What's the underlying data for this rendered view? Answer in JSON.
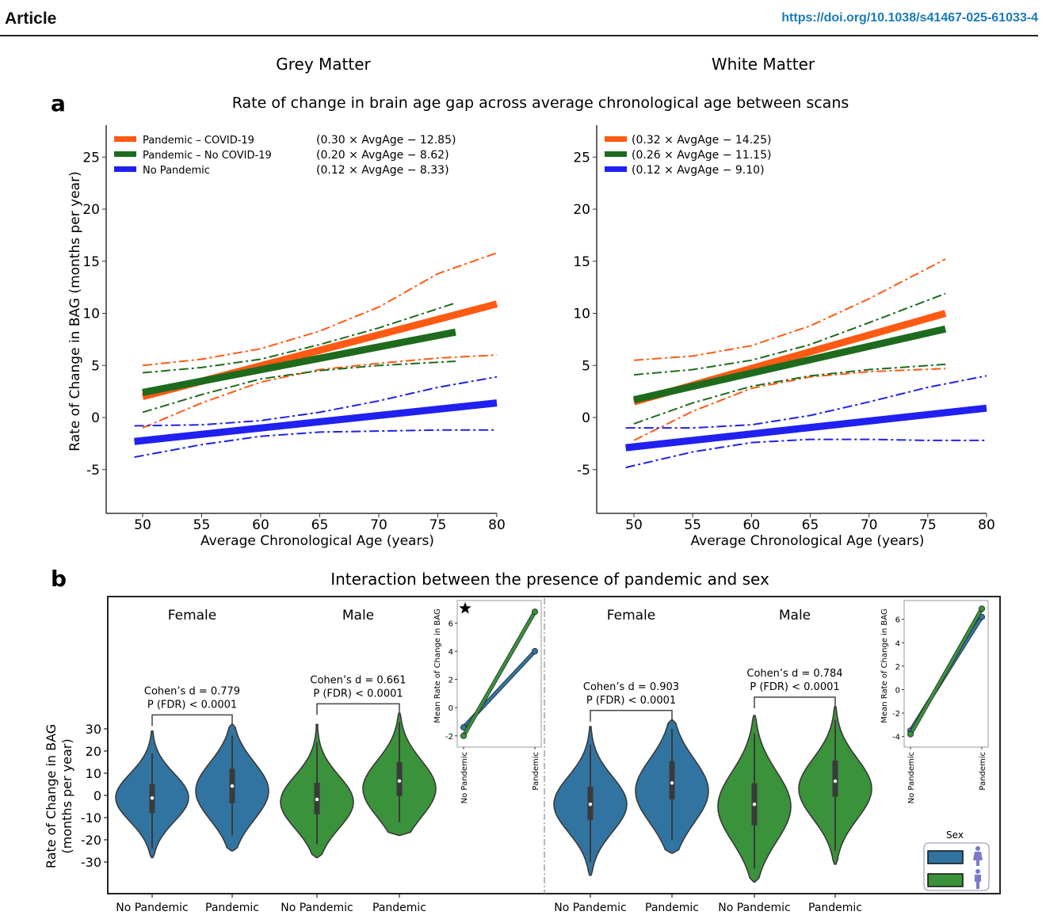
{
  "header": {
    "section": "Article",
    "doi": "https://doi.org/10.1038/s41467-025-61033-4"
  },
  "panel_a": {
    "label": "a",
    "title": "Rate of change in brain age gap across average chronological age between scans",
    "column_titles": [
      "Grey Matter",
      "White Matter"
    ]
  },
  "panel_b": {
    "label": "b",
    "title": "Interaction between the presence of pandemic and sex",
    "legend_title": "Sex",
    "legend_items": [
      {
        "label": "Female",
        "color": "#3274a1",
        "icon": "female-person-icon"
      },
      {
        "label": "Male",
        "color": "#3a923a",
        "icon": "male-person-icon"
      }
    ],
    "star_icon": "star-icon"
  },
  "colors": {
    "covid": "#ff5a14",
    "no_covid": "#1e6b1e",
    "no_pandemic": "#2020f0",
    "female": "#3274a1",
    "male": "#3a923a"
  },
  "chart_data": [
    {
      "id": "grey-matter-line",
      "type": "line",
      "title": "Grey Matter",
      "xlabel": "Average Chronological Age (years)",
      "ylabel": "Rate of Change in BAG (months per year)",
      "xlim": [
        47,
        80
      ],
      "ylim": [
        -9,
        28
      ],
      "xticks": [
        50,
        55,
        60,
        65,
        70,
        75,
        80
      ],
      "yticks": [
        -5,
        0,
        5,
        10,
        15,
        20,
        25
      ],
      "ytick_labels": [
        "-5",
        "0",
        "5",
        "10",
        "15",
        "20",
        "25"
      ],
      "legend_position": "top-left",
      "series": [
        {
          "name": "Pandemic – COVID-19",
          "equation": "(0.30 × AvgAge − 12.85)",
          "color_key": "covid",
          "fit": [
            [
              50,
              2.0
            ],
            [
              80,
              10.9
            ]
          ],
          "ci_upper": [
            [
              50,
              5.0
            ],
            [
              55,
              5.6
            ],
            [
              60,
              6.6
            ],
            [
              65,
              8.3
            ],
            [
              70,
              10.6
            ],
            [
              75,
              13.8
            ],
            [
              80,
              15.8
            ]
          ],
          "ci_lower": [
            [
              50,
              -1.0
            ],
            [
              55,
              1.4
            ],
            [
              60,
              3.4
            ],
            [
              65,
              4.6
            ],
            [
              70,
              5.2
            ],
            [
              75,
              5.7
            ],
            [
              80,
              6.0
            ]
          ]
        },
        {
          "name": "Pandemic – No COVID-19",
          "equation": "(0.20 × AvgAge − 8.62)",
          "color_key": "no_covid",
          "fit": [
            [
              50,
              2.4
            ],
            [
              76.5,
              8.2
            ]
          ],
          "ci_upper": [
            [
              50,
              4.3
            ],
            [
              55,
              4.8
            ],
            [
              60,
              5.6
            ],
            [
              65,
              7.0
            ],
            [
              70,
              8.6
            ],
            [
              76.5,
              11.0
            ]
          ],
          "ci_lower": [
            [
              50,
              0.5
            ],
            [
              55,
              2.2
            ],
            [
              60,
              3.7
            ],
            [
              65,
              4.5
            ],
            [
              70,
              5.0
            ],
            [
              76.5,
              5.4
            ]
          ]
        },
        {
          "name": "No Pandemic",
          "equation": "(0.12 × AvgAge − 8.33)",
          "color_key": "no_pandemic",
          "fit": [
            [
              49.3,
              -2.3
            ],
            [
              80,
              1.4
            ]
          ],
          "ci_upper": [
            [
              49.3,
              -0.8
            ],
            [
              55,
              -0.7
            ],
            [
              60,
              -0.3
            ],
            [
              65,
              0.5
            ],
            [
              70,
              1.6
            ],
            [
              75,
              2.9
            ],
            [
              80,
              3.9
            ]
          ],
          "ci_lower": [
            [
              49.3,
              -3.8
            ],
            [
              55,
              -2.6
            ],
            [
              60,
              -1.8
            ],
            [
              65,
              -1.4
            ],
            [
              70,
              -1.3
            ],
            [
              75,
              -1.2
            ],
            [
              80,
              -1.2
            ]
          ]
        }
      ]
    },
    {
      "id": "white-matter-line",
      "type": "line",
      "title": "White Matter",
      "xlabel": "Average Chronological Age (years)",
      "ylabel": "",
      "xlim": [
        47,
        80
      ],
      "ylim": [
        -9,
        28
      ],
      "xticks": [
        50,
        55,
        60,
        65,
        70,
        75,
        80
      ],
      "yticks": [
        -5,
        0,
        5,
        10,
        15,
        20,
        25
      ],
      "ytick_labels": [
        "-5",
        "0",
        "5",
        "10",
        "15",
        "20",
        "25"
      ],
      "legend_position": "top-left",
      "series": [
        {
          "name": "Pandemic – COVID-19",
          "equation": "(0.32 × AvgAge − 14.25)",
          "color_key": "covid",
          "fit": [
            [
              50,
              1.5
            ],
            [
              76.5,
              10.0
            ]
          ],
          "ci_upper": [
            [
              50,
              5.5
            ],
            [
              55,
              5.9
            ],
            [
              60,
              6.9
            ],
            [
              65,
              8.8
            ],
            [
              70,
              11.4
            ],
            [
              76.5,
              15.2
            ]
          ],
          "ci_lower": [
            [
              50,
              -2.2
            ],
            [
              55,
              0.6
            ],
            [
              60,
              2.8
            ],
            [
              65,
              3.9
            ],
            [
              70,
              4.4
            ],
            [
              76.5,
              4.7
            ]
          ]
        },
        {
          "name": "Pandemic – No COVID-19",
          "equation": "(0.26 × AvgAge − 11.15)",
          "color_key": "no_covid",
          "fit": [
            [
              50,
              1.7
            ],
            [
              76.5,
              8.5
            ]
          ],
          "ci_upper": [
            [
              50,
              4.1
            ],
            [
              55,
              4.6
            ],
            [
              60,
              5.5
            ],
            [
              65,
              7.0
            ],
            [
              70,
              9.1
            ],
            [
              76.5,
              11.9
            ]
          ],
          "ci_lower": [
            [
              50,
              -0.6
            ],
            [
              55,
              1.4
            ],
            [
              60,
              3.0
            ],
            [
              65,
              4.0
            ],
            [
              70,
              4.6
            ],
            [
              76.5,
              5.1
            ]
          ]
        },
        {
          "name": "No Pandemic",
          "equation": "(0.12 × AvgAge − 9.10)",
          "color_key": "no_pandemic",
          "fit": [
            [
              49.3,
              -2.9
            ],
            [
              80,
              0.9
            ]
          ],
          "ci_upper": [
            [
              49.3,
              -1.0
            ],
            [
              55,
              -1.0
            ],
            [
              60,
              -0.7
            ],
            [
              65,
              0.2
            ],
            [
              70,
              1.5
            ],
            [
              75,
              2.9
            ],
            [
              80,
              4.0
            ]
          ],
          "ci_lower": [
            [
              49.3,
              -4.8
            ],
            [
              55,
              -3.3
            ],
            [
              60,
              -2.4
            ],
            [
              65,
              -2.1
            ],
            [
              70,
              -2.1
            ],
            [
              75,
              -2.2
            ],
            [
              80,
              -2.2
            ]
          ]
        }
      ]
    },
    {
      "id": "sex-pandemic-violin",
      "type": "violin",
      "ylabel": "Rate of Change in BAG (months per year)",
      "ylim": [
        -45,
        55
      ],
      "yticks": [
        -30,
        -20,
        -10,
        0,
        10,
        20,
        30
      ],
      "ytick_labels": [
        "-30",
        "-20",
        "-10",
        "0",
        "10",
        "20",
        "30"
      ],
      "groups": [
        {
          "panel": "Grey Matter",
          "sex": "Female",
          "cohens_d": "Cohen’s d = 0.779",
          "p_text": "P (FDR) < 0.0001",
          "violins": [
            {
              "label": "No Pandemic",
              "color_key": "female",
              "median": -1.2,
              "q1": -8,
              "q3": 5,
              "min": -28,
              "max": 29,
              "whisk_lo": -24,
              "whisk_hi": 19,
              "mode": -1
            },
            {
              "label": "Pandemic",
              "color_key": "female",
              "median": 4.2,
              "q1": -3.5,
              "q3": 12,
              "min": -25,
              "max": 32,
              "whisk_lo": -18,
              "whisk_hi": 27,
              "mode": 2
            }
          ]
        },
        {
          "panel": "Grey Matter",
          "sex": "Male",
          "cohens_d": "Cohen’s d = 0.661",
          "p_text": "P (FDR) < 0.0001",
          "violins": [
            {
              "label": "No Pandemic",
              "color_key": "male",
              "median": -1.8,
              "q1": -8.5,
              "q3": 5.7,
              "min": -28,
              "max": 32,
              "whisk_lo": -22,
              "whisk_hi": 24,
              "mode": -3
            },
            {
              "label": "Pandemic",
              "color_key": "male",
              "median": 6.5,
              "q1": -0.3,
              "q3": 15,
              "min": -18,
              "max": 37,
              "whisk_lo": -12,
              "whisk_hi": 33,
              "mode": 3
            }
          ]
        },
        {
          "panel": "White Matter",
          "sex": "Female",
          "cohens_d": "Cohen’s d = 0.903",
          "p_text": "P (FDR) < 0.0001",
          "violins": [
            {
              "label": "No Pandemic",
              "color_key": "female",
              "median": -4,
              "q1": -11,
              "q3": 4,
              "min": -36,
              "max": 31,
              "whisk_lo": -30,
              "whisk_hi": 23,
              "mode": -4
            },
            {
              "label": "Pandemic",
              "color_key": "female",
              "median": 5.6,
              "q1": -1.8,
              "q3": 15.5,
              "min": -26,
              "max": 34,
              "whisk_lo": -20,
              "whisk_hi": 30,
              "mode": 2
            }
          ]
        },
        {
          "panel": "White Matter",
          "sex": "Male",
          "cohens_d": "Cohen’s d = 0.784",
          "p_text": "P (FDR) < 0.0001",
          "violins": [
            {
              "label": "No Pandemic",
              "color_key": "male",
              "median": -4,
              "q1": -13.5,
              "q3": 5.5,
              "min": -39,
              "max": 36,
              "whisk_lo": -33,
              "whisk_hi": 28,
              "mode": -5
            },
            {
              "label": "Pandemic",
              "color_key": "male",
              "median": 6.4,
              "q1": -0.6,
              "q3": 15.7,
              "min": -31,
              "max": 40,
              "whisk_lo": -25,
              "whisk_hi": 34,
              "mode": 3
            }
          ]
        }
      ]
    },
    {
      "id": "grey-matter-interaction",
      "type": "line",
      "ylabel": "Mean Rate of Change in BAG",
      "categories": [
        "No Pandemic",
        "Pandemic"
      ],
      "ylim": [
        -2.8,
        7.6
      ],
      "yticks": [
        -2,
        0,
        2,
        4,
        6
      ],
      "ytick_labels": [
        "-2",
        "0",
        "2",
        "4",
        "6"
      ],
      "significant": true,
      "series": [
        {
          "name": "Female",
          "color_key": "female",
          "values": [
            -1.4,
            4.0
          ]
        },
        {
          "name": "Male",
          "color_key": "male",
          "values": [
            -2.0,
            6.8
          ]
        }
      ]
    },
    {
      "id": "white-matter-interaction",
      "type": "line",
      "ylabel": "Mean Rate of Change in BAG",
      "categories": [
        "No Pandemic",
        "Pandemic"
      ],
      "ylim": [
        -4.9,
        7.6
      ],
      "yticks": [
        -4,
        -2,
        0,
        2,
        4,
        6
      ],
      "ytick_labels": [
        "-4",
        "-2",
        "0",
        "2",
        "4",
        "6"
      ],
      "significant": false,
      "series": [
        {
          "name": "Female",
          "color_key": "female",
          "values": [
            -3.5,
            6.2
          ]
        },
        {
          "name": "Male",
          "color_key": "male",
          "values": [
            -3.8,
            6.9
          ]
        }
      ]
    }
  ]
}
